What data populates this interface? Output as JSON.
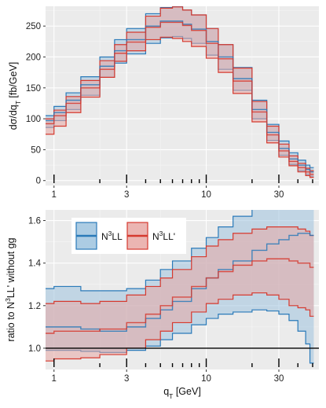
{
  "chart_data": [
    {
      "type": "line",
      "panel": "top",
      "ylabel_parts": [
        "dσ/dq",
        "T",
        " [fb/GeV]"
      ],
      "xlabel": "",
      "xscale": "log",
      "xlim": [
        0.88,
        55
      ],
      "ylim": [
        -8,
        282
      ],
      "yticks": [
        0,
        50,
        100,
        150,
        200,
        250
      ],
      "xticks": [
        1,
        3,
        10,
        30
      ],
      "grid": true,
      "x": [
        0.88,
        1,
        1.2,
        1.5,
        2,
        2.5,
        3,
        4,
        5,
        6,
        7,
        8,
        10,
        12,
        15,
        20,
        25,
        30,
        35,
        40,
        45,
        48
      ],
      "series": [
        {
          "name": "N3LL",
          "color": "#2a7ab9",
          "fill": "#9ec3de",
          "center": [
            97,
            110,
            130,
            155,
            185,
            210,
            228,
            250,
            258,
            258,
            253,
            245,
            225,
            200,
            165,
            115,
            78,
            52,
            35,
            25,
            18,
            14
          ],
          "lower": [
            86,
            97,
            115,
            138,
            167,
            190,
            205,
            222,
            231,
            233,
            230,
            222,
            203,
            180,
            146,
            100,
            65,
            41,
            26,
            16,
            10,
            7
          ],
          "upper": [
            105,
            120,
            142,
            168,
            200,
            228,
            246,
            270,
            280,
            282,
            276,
            268,
            246,
            220,
            183,
            130,
            91,
            64,
            45,
            33,
            25,
            21
          ]
        },
        {
          "name": "N3LL'",
          "color": "#d63a2f",
          "fill": "#e8a8a4",
          "center": [
            92,
            105,
            125,
            150,
            180,
            206,
            224,
            248,
            256,
            256,
            251,
            243,
            222,
            197,
            161,
            111,
            74,
            48,
            31,
            21,
            14,
            10
          ],
          "lower": [
            75,
            88,
            110,
            135,
            167,
            193,
            210,
            228,
            232,
            230,
            225,
            217,
            198,
            175,
            141,
            95,
            61,
            38,
            24,
            14,
            8,
            5
          ],
          "upper": [
            100,
            114,
            136,
            162,
            194,
            220,
            240,
            266,
            279,
            281,
            276,
            268,
            246,
            220,
            182,
            128,
            88,
            59,
            40,
            28,
            20,
            16
          ]
        }
      ]
    },
    {
      "type": "line",
      "panel": "bottom",
      "ylabel_parts": [
        "ratio to N",
        "3",
        "LL' without gg"
      ],
      "xlabel_parts": [
        "q",
        "T",
        " [GeV]"
      ],
      "xscale": "log",
      "xlim": [
        0.88,
        55
      ],
      "ylim": [
        0.9,
        1.65
      ],
      "yticks": [
        1.0,
        1.2,
        1.4,
        1.6
      ],
      "xticks": [
        1,
        3,
        10,
        30
      ],
      "grid": true,
      "reference_line": 1.0,
      "legend_position": "top-left",
      "x": [
        0.88,
        1,
        1.5,
        2,
        3,
        4,
        5,
        6,
        8,
        10,
        12,
        15,
        20,
        25,
        30,
        35,
        40,
        45,
        48
      ],
      "series": [
        {
          "name": "N3LL",
          "label_parts": [
            "N",
            "3",
            "LL"
          ],
          "color": "#2a7ab9",
          "fill": "#9ec3de",
          "center": [
            1.1,
            1.1,
            1.09,
            1.08,
            1.1,
            1.14,
            1.18,
            1.22,
            1.28,
            1.33,
            1.37,
            1.41,
            1.46,
            1.49,
            1.51,
            1.53,
            1.54,
            1.54,
            1.53
          ],
          "lower": [
            0.99,
            0.99,
            0.985,
            0.98,
            0.99,
            1.01,
            1.04,
            1.07,
            1.11,
            1.14,
            1.16,
            1.17,
            1.18,
            1.175,
            1.16,
            1.13,
            1.08,
            1.02,
            0.93
          ],
          "upper": [
            1.28,
            1.29,
            1.27,
            1.27,
            1.28,
            1.32,
            1.37,
            1.41,
            1.47,
            1.52,
            1.57,
            1.62,
            1.68,
            1.72,
            1.74,
            1.76,
            1.76,
            1.75,
            1.73
          ]
        },
        {
          "name": "N3LL'",
          "label_parts": [
            "N",
            "3",
            "LL'"
          ],
          "color": "#d63a2f",
          "fill": "#e8a8a4",
          "center": [
            1.07,
            1.08,
            1.08,
            1.09,
            1.12,
            1.16,
            1.2,
            1.24,
            1.29,
            1.33,
            1.36,
            1.39,
            1.41,
            1.42,
            1.42,
            1.41,
            1.4,
            1.4,
            1.38
          ],
          "lower": [
            0.94,
            0.95,
            0.955,
            0.97,
            1.0,
            1.04,
            1.08,
            1.12,
            1.17,
            1.21,
            1.23,
            1.25,
            1.26,
            1.25,
            1.23,
            1.2,
            1.19,
            1.18,
            1.15
          ],
          "upper": [
            1.21,
            1.22,
            1.21,
            1.22,
            1.25,
            1.29,
            1.33,
            1.37,
            1.43,
            1.48,
            1.51,
            1.54,
            1.56,
            1.57,
            1.57,
            1.57,
            1.56,
            1.55,
            1.53
          ]
        }
      ]
    }
  ]
}
